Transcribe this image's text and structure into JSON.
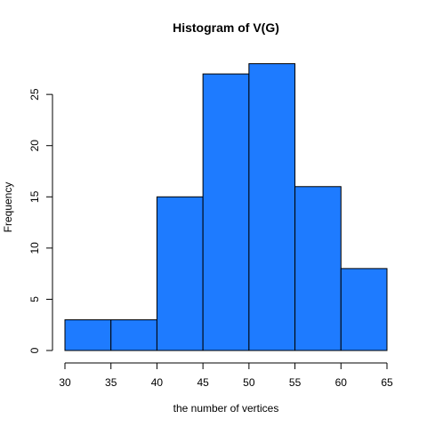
{
  "chart_data": {
    "type": "bar",
    "title": "Histogram of V(G)",
    "xlabel": "the number of vertices",
    "ylabel": "Frequency",
    "bins": [
      {
        "from": 30,
        "to": 35,
        "count": 3
      },
      {
        "from": 35,
        "to": 40,
        "count": 3
      },
      {
        "from": 40,
        "to": 45,
        "count": 15
      },
      {
        "from": 45,
        "to": 50,
        "count": 27
      },
      {
        "from": 50,
        "to": 55,
        "count": 28
      },
      {
        "from": 55,
        "to": 60,
        "count": 16
      },
      {
        "from": 60,
        "to": 65,
        "count": 8
      }
    ],
    "xlim": [
      30,
      65
    ],
    "ylim": [
      0,
      28
    ],
    "x_ticks": [
      "30",
      "35",
      "40",
      "45",
      "50",
      "55",
      "60",
      "65"
    ],
    "y_ticks": [
      "0",
      "5",
      "10",
      "15",
      "20",
      "25"
    ],
    "bar_color": "#1E7BFF",
    "grid": false
  }
}
